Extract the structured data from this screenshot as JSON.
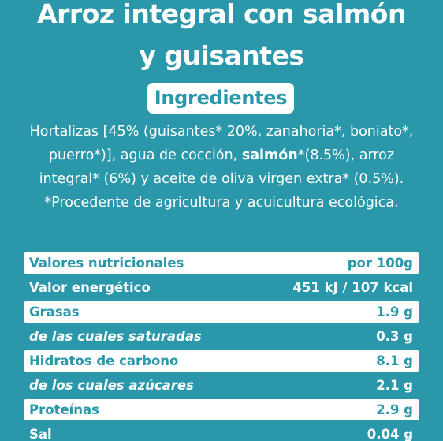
{
  "title": {
    "line1": "Arroz integral con salmón",
    "line2": "y guisantes"
  },
  "ingredients_heading": "Ingredientes",
  "ingredients": {
    "line1": "Hortalizas [45% (guisantes* 20%, zanahoria*, boniato*,",
    "line2_pre": "puerro*)], agua de cocción, ",
    "line2_bold": "salmón",
    "line2_post": "*(8.5%), arroz",
    "line3": "integral* (6%) y aceite de oliva virgen extra* (0.5%).",
    "line4": "*Procedente de agricultura y acuicultura ecológica."
  },
  "nutrition": {
    "rows": [
      {
        "label": "Valores nutricionales",
        "value": "por 100g"
      },
      {
        "label": "Valor energético",
        "value": "451 kJ / 107 kcal"
      },
      {
        "label": "Grasas",
        "value": "1.9 g"
      },
      {
        "label": "de las cuales saturadas",
        "value": "0.3 g"
      },
      {
        "label": "Hidratos de carbono",
        "value": "8.1 g"
      },
      {
        "label": "de los cuales azúcares",
        "value": "2.1 g"
      },
      {
        "label": "Proteínas",
        "value": "2.9 g"
      },
      {
        "label": "Sal",
        "value": "0.04 g"
      }
    ]
  },
  "colors": {
    "background": "#2a97ab",
    "text": "#ffffff"
  }
}
